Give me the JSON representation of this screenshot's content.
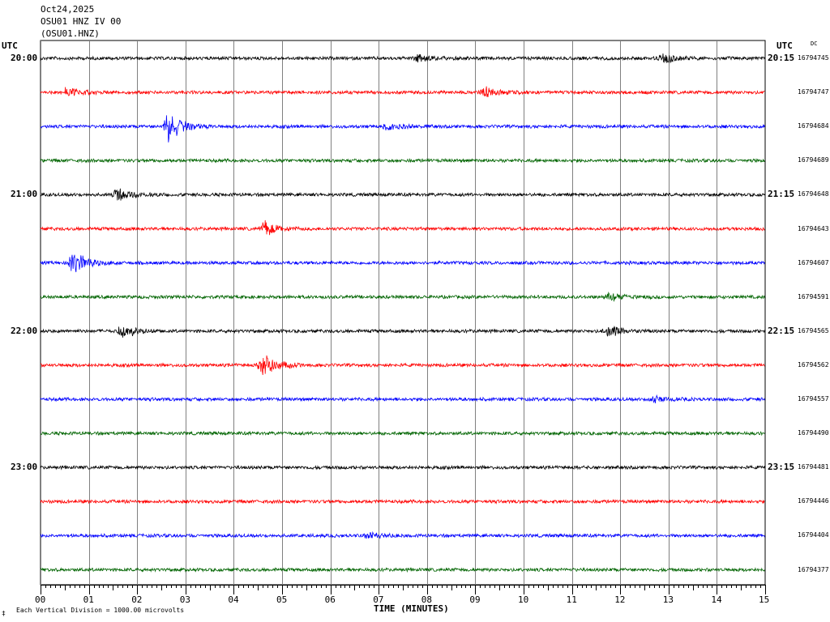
{
  "header": {
    "date": "Oct24,2025",
    "station": "OSU01 HNZ IV 00",
    "channel": "(OSU01.HNZ)"
  },
  "utc_left": "UTC",
  "utc_right": "UTC",
  "dc_label": "DC",
  "xlabel": "TIME (MINUTES)",
  "footer_mark": "‡",
  "footer_text": "Each Vertical Division = 1000.00 microvolts",
  "colors": {
    "trace1": "#000000",
    "trace2": "#ff0000",
    "trace3": "#0000ff",
    "trace4": "#006400",
    "grid": "#808080"
  },
  "chart_data": {
    "type": "line",
    "title": "OSU01 HNZ IV 00",
    "xlabel": "TIME (MINUTES)",
    "ylabel": "",
    "xlim": [
      0,
      15
    ],
    "x_ticks": [
      "00",
      "01",
      "02",
      "03",
      "04",
      "05",
      "06",
      "07",
      "08",
      "09",
      "10",
      "11",
      "12",
      "13",
      "14",
      "15"
    ],
    "left_time_labels": [
      {
        "row": 0,
        "label": "20:00"
      },
      {
        "row": 4,
        "label": "21:00"
      },
      {
        "row": 8,
        "label": "22:00"
      },
      {
        "row": 12,
        "label": "23:00"
      }
    ],
    "right_time_labels": [
      {
        "row": 0,
        "label": "20:15"
      },
      {
        "row": 4,
        "label": "21:15"
      },
      {
        "row": 8,
        "label": "22:15"
      },
      {
        "row": 12,
        "label": "23:15"
      }
    ],
    "dc_offsets": [
      "16794745",
      "16794747",
      "16794684",
      "16794689",
      "16794648",
      "16794643",
      "16794607",
      "16794591",
      "16794565",
      "16794562",
      "16794557",
      "16794490",
      "16794481",
      "16794446",
      "16794404",
      "16794377"
    ],
    "trace_colors": [
      "#000000",
      "#ff0000",
      "#0000ff",
      "#006400"
    ],
    "events": [
      {
        "row": 0,
        "minute": 12.9,
        "amp": 0.3
      },
      {
        "row": 0,
        "minute": 7.8,
        "amp": 0.2
      },
      {
        "row": 1,
        "minute": 0.55,
        "amp": 0.35
      },
      {
        "row": 1,
        "minute": 9.2,
        "amp": 0.3
      },
      {
        "row": 2,
        "minute": 2.65,
        "amp": 1.0
      },
      {
        "row": 2,
        "minute": 7.2,
        "amp": 0.25
      },
      {
        "row": 4,
        "minute": 1.6,
        "amp": 0.45
      },
      {
        "row": 5,
        "minute": 4.65,
        "amp": 0.45
      },
      {
        "row": 6,
        "minute": 0.7,
        "amp": 0.8
      },
      {
        "row": 7,
        "minute": 11.8,
        "amp": 0.25
      },
      {
        "row": 8,
        "minute": 1.7,
        "amp": 0.45
      },
      {
        "row": 8,
        "minute": 11.75,
        "amp": 0.4
      },
      {
        "row": 9,
        "minute": 4.6,
        "amp": 0.9
      },
      {
        "row": 10,
        "minute": 12.7,
        "amp": 0.2
      },
      {
        "row": 14,
        "minute": 6.8,
        "amp": 0.2
      }
    ]
  }
}
